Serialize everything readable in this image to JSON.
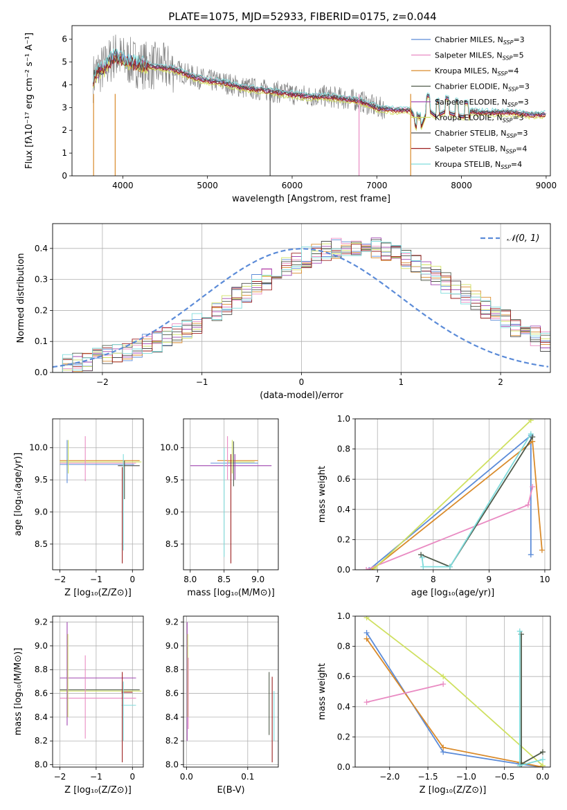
{
  "figure": {
    "title": "PLATE=1075, MJD=52933, FIBERID=0175, z=0.044"
  },
  "colors": {
    "data": "#808080",
    "series": [
      "#5b8bd8",
      "#e98ac2",
      "#d98a2a",
      "#4f5a4a",
      "#a046b0",
      "#cfe060",
      "#4d4d4d",
      "#9c1f1f",
      "#7fdcdc"
    ]
  },
  "chart_data": [
    {
      "id": "spectrum",
      "type": "line",
      "xlabel": "wavelength [Angstrom, rest frame]",
      "ylabel": "Flux [fλ10⁻¹⁷ erg cm⁻² s⁻¹ A⁻¹]",
      "xlim": [
        3400,
        9050
      ],
      "ylim": [
        0,
        6.6
      ],
      "xticks": [
        4000,
        5000,
        6000,
        7000,
        8000,
        9000
      ],
      "yticks": [
        0,
        1,
        2,
        3,
        4,
        5,
        6
      ],
      "data_series": {
        "x": [
          3650,
          3700,
          3800,
          3900,
          4000,
          4100,
          4200,
          4400,
          4600,
          4800,
          5000,
          5200,
          5400,
          5600,
          5800,
          6000,
          6200,
          6400,
          6600,
          6800,
          7000,
          7200,
          7400,
          7500,
          7600,
          7700,
          7800,
          8000,
          8200,
          8400,
          8600,
          8800,
          9000
        ],
        "y": [
          4.3,
          4.6,
          4.8,
          5.3,
          5.1,
          5.0,
          4.9,
          4.8,
          4.7,
          4.4,
          4.2,
          4.1,
          3.9,
          3.8,
          3.7,
          3.6,
          3.5,
          3.5,
          3.4,
          3.3,
          3.0,
          2.9,
          2.9,
          2.2,
          3.2,
          2.9,
          3.1,
          2.9,
          2.8,
          2.8,
          2.8,
          2.7,
          2.7
        ]
      },
      "legend": [
        {
          "name": "Chabrier MILES, N",
          "sub": "SSP",
          "val": "=3"
        },
        {
          "name": "Salpeter MILES, N",
          "sub": "SSP",
          "val": "=5"
        },
        {
          "name": "Kroupa MILES, N",
          "sub": "SSP",
          "val": "=4"
        },
        {
          "name": "Chabrier ELODIE, N",
          "sub": "SSP",
          "val": "=3"
        },
        {
          "name": "Salpeter ELODIE, N",
          "sub": "SSP",
          "val": "=3"
        },
        {
          "name": "Kroupa ELODIE, N",
          "sub": "SSP",
          "val": "=3"
        },
        {
          "name": "Chabrier STELIB, N",
          "sub": "SSP",
          "val": "=3"
        },
        {
          "name": "Salpeter STELIB, N",
          "sub": "SSP",
          "val": "=4"
        },
        {
          "name": "Kroupa STELIB, N",
          "sub": "SSP",
          "val": "=4"
        }
      ]
    },
    {
      "id": "residuals",
      "type": "histogram",
      "xlabel": "(data-model)/error",
      "ylabel": "Normed distribution",
      "xlim": [
        -2.5,
        2.5
      ],
      "ylim": [
        0,
        0.48
      ],
      "xticks": [
        -2,
        -1,
        0,
        1,
        2
      ],
      "yticks": [
        0.0,
        0.1,
        0.2,
        0.3,
        0.4
      ],
      "gaussian_label": "𝒩(0, 1)",
      "bin_width": 0.1,
      "bin_start": -2.5,
      "base_values": [
        0.02,
        0.025,
        0.03,
        0.04,
        0.045,
        0.055,
        0.065,
        0.07,
        0.08,
        0.09,
        0.1,
        0.115,
        0.13,
        0.145,
        0.16,
        0.18,
        0.2,
        0.22,
        0.24,
        0.26,
        0.285,
        0.3,
        0.32,
        0.34,
        0.355,
        0.37,
        0.38,
        0.39,
        0.4,
        0.405,
        0.41,
        0.405,
        0.4,
        0.39,
        0.38,
        0.365,
        0.35,
        0.33,
        0.31,
        0.29,
        0.27,
        0.25,
        0.23,
        0.21,
        0.19,
        0.17,
        0.15,
        0.13,
        0.115,
        0.1,
        0.09,
        0.08,
        0.07,
        0.06,
        0.05,
        0.045,
        0.04,
        0.035,
        0.03,
        0.028
      ]
    },
    {
      "id": "age-vs-Z",
      "type": "scatter-errorbar",
      "xlabel": "Z [log₁₀(Z/Z⊙)]",
      "ylabel": "age  [log₁₀(age/yr)]",
      "xlim": [
        -2.2,
        0.3
      ],
      "ylim": [
        8.1,
        10.45
      ],
      "xticks": [
        -2,
        -1,
        0
      ],
      "yticks": [
        8.5,
        9.0,
        9.5,
        10.0
      ],
      "hbars": [
        {
          "y": 9.8,
          "x0": -2.0,
          "x1": 0.2,
          "c": 2
        },
        {
          "y": 9.78,
          "x0": -2.0,
          "x1": 0.25,
          "c": 5
        },
        {
          "y": 9.76,
          "x0": -2.0,
          "x1": 0.1,
          "c": 1
        },
        {
          "y": 9.74,
          "x0": -2.0,
          "x1": 0.05,
          "c": 0
        },
        {
          "y": 9.72,
          "x0": -0.4,
          "x1": 0.2,
          "c": 6
        }
      ],
      "vbars": [
        {
          "x": -1.8,
          "y0": 9.45,
          "y1": 10.12,
          "c": 0
        },
        {
          "x": -1.77,
          "y0": 9.6,
          "y1": 10.12,
          "c": 5
        },
        {
          "x": -1.3,
          "y0": 9.48,
          "y1": 10.18,
          "c": 1
        },
        {
          "x": -0.28,
          "y0": 8.2,
          "y1": 9.7,
          "c": 7
        },
        {
          "x": -0.25,
          "y0": 8.4,
          "y1": 9.9,
          "c": 8
        },
        {
          "x": -0.22,
          "y0": 9.2,
          "y1": 9.8,
          "c": 3
        }
      ]
    },
    {
      "id": "age-vs-mass",
      "type": "scatter-errorbar",
      "xlabel": "mass [log₁₀(M/M⊙)]",
      "ylabel": "",
      "xlim": [
        7.9,
        9.3
      ],
      "ylim": [
        8.1,
        10.45
      ],
      "xticks": [
        8.0,
        8.5,
        9.0
      ],
      "yticks": [
        8.5,
        9.0,
        9.5,
        10.0
      ],
      "hbars": [
        {
          "y": 9.72,
          "x0": 8.0,
          "x1": 9.2,
          "c": 4
        },
        {
          "y": 9.76,
          "x0": 8.3,
          "x1": 9.0,
          "c": 0
        },
        {
          "y": 9.8,
          "x0": 8.4,
          "x1": 9.0,
          "c": 2
        },
        {
          "y": 9.78,
          "x0": 8.55,
          "x1": 8.95,
          "c": 5
        }
      ],
      "vbars": [
        {
          "x": 8.5,
          "y0": 8.3,
          "y1": 10.0,
          "c": 8
        },
        {
          "x": 8.55,
          "y0": 9.5,
          "y1": 10.18,
          "c": 1
        },
        {
          "x": 8.6,
          "y0": 8.2,
          "y1": 9.9,
          "c": 7
        },
        {
          "x": 8.62,
          "y0": 9.6,
          "y1": 10.12,
          "c": 5
        },
        {
          "x": 8.64,
          "y0": 9.4,
          "y1": 10.1,
          "c": 3
        },
        {
          "x": 8.66,
          "y0": 9.5,
          "y1": 9.9,
          "c": 4
        }
      ]
    },
    {
      "id": "weight-vs-age",
      "type": "line",
      "xlabel": "age  [log₁₀(age/yr)]",
      "ylabel": "mass weight",
      "xlim": [
        6.6,
        10.1
      ],
      "ylim": [
        0,
        1.0
      ],
      "xticks": [
        7,
        8,
        9,
        10
      ],
      "yticks": [
        0.0,
        0.2,
        0.4,
        0.6,
        0.8,
        1.0
      ],
      "series": [
        {
          "c": 0,
          "x": [
            6.85,
            9.75,
            9.75
          ],
          "y": [
            0.0,
            0.89,
            0.1
          ]
        },
        {
          "c": 2,
          "x": [
            6.9,
            9.78,
            9.95
          ],
          "y": [
            0.0,
            0.85,
            0.13
          ]
        },
        {
          "c": 1,
          "x": [
            6.8,
            9.7,
            9.78
          ],
          "y": [
            0.0,
            0.43,
            0.55
          ]
        },
        {
          "c": 5,
          "x": [
            6.95,
            9.75
          ],
          "y": [
            0.01,
            0.99
          ]
        },
        {
          "c": 3,
          "x": [
            7.78,
            8.3,
            9.78
          ],
          "y": [
            0.1,
            0.02,
            0.88
          ]
        },
        {
          "c": 8,
          "x": [
            7.8,
            7.82,
            8.3,
            9.75
          ],
          "y": [
            0.08,
            0.02,
            0.02,
            0.9
          ]
        }
      ]
    },
    {
      "id": "mass-vs-Z",
      "type": "scatter-errorbar",
      "xlabel": "Z [log₁₀(Z/Z⊙)]",
      "ylabel": "mass [log₁₀(M/M⊙)]",
      "xlim": [
        -2.2,
        0.3
      ],
      "ylim": [
        7.98,
        9.25
      ],
      "xticks": [
        -2,
        -1,
        0
      ],
      "yticks": [
        8.0,
        8.2,
        8.4,
        8.6,
        8.8,
        9.0,
        9.2
      ],
      "hbars": [
        {
          "y": 8.73,
          "x0": -2.0,
          "x1": 0.1,
          "c": 4
        },
        {
          "y": 8.63,
          "x0": -2.0,
          "x1": 0.2,
          "c": 3
        },
        {
          "y": 8.62,
          "x0": -2.0,
          "x1": 0.25,
          "c": 5
        },
        {
          "y": 8.56,
          "x0": -2.0,
          "x1": 0.1,
          "c": 1
        },
        {
          "y": 8.61,
          "x0": -0.3,
          "x1": 0.0,
          "c": 7
        },
        {
          "y": 8.5,
          "x0": -0.3,
          "x1": 0.1,
          "c": 8
        }
      ],
      "vbars": [
        {
          "x": -1.8,
          "y0": 8.33,
          "y1": 9.2,
          "c": 4
        },
        {
          "x": -1.78,
          "y0": 8.4,
          "y1": 9.1,
          "c": 5
        },
        {
          "x": -1.3,
          "y0": 8.22,
          "y1": 8.92,
          "c": 1
        },
        {
          "x": -0.28,
          "y0": 8.02,
          "y1": 8.78,
          "c": 7
        },
        {
          "x": -0.25,
          "y0": 8.2,
          "y1": 8.7,
          "c": 8
        }
      ]
    },
    {
      "id": "mass-vs-EBV",
      "type": "scatter-errorbar",
      "xlabel": "E(B-V)",
      "ylabel": "",
      "xlim": [
        -0.005,
        0.15
      ],
      "ylim": [
        7.98,
        9.25
      ],
      "xticks": [
        0.0,
        0.1
      ],
      "yticks": [
        8.0,
        8.2,
        8.4,
        8.6,
        8.8,
        9.0,
        9.2
      ],
      "hbars": [],
      "vbars": [
        {
          "x": 0.001,
          "y0": 8.2,
          "y1": 9.2,
          "c": 4
        },
        {
          "x": 0.002,
          "y0": 8.4,
          "y1": 9.1,
          "c": 5
        },
        {
          "x": 0.003,
          "y0": 8.3,
          "y1": 8.9,
          "c": 1
        },
        {
          "x": 0.135,
          "y0": 8.25,
          "y1": 8.78,
          "c": 3
        },
        {
          "x": 0.14,
          "y0": 8.02,
          "y1": 8.74,
          "c": 7
        },
        {
          "x": 0.143,
          "y0": 8.2,
          "y1": 8.62,
          "c": 8
        }
      ]
    },
    {
      "id": "weight-vs-Z",
      "type": "line",
      "xlabel": "Z [log₁₀(Z/Z⊙)]",
      "ylabel": "mass weight",
      "xlim": [
        -2.45,
        0.1
      ],
      "ylim": [
        0,
        1.0
      ],
      "xticks": [
        -2.0,
        -1.5,
        -1.0,
        -0.5,
        0.0
      ],
      "yticks": [
        0.0,
        0.2,
        0.4,
        0.6,
        0.8,
        1.0
      ],
      "series": [
        {
          "c": 0,
          "x": [
            -2.3,
            -1.3,
            -0.3,
            0.0
          ],
          "y": [
            0.89,
            0.1,
            0.02,
            0.0
          ]
        },
        {
          "c": 2,
          "x": [
            -2.3,
            -1.3,
            -0.3,
            0.0
          ],
          "y": [
            0.85,
            0.13,
            0.03,
            0.0
          ]
        },
        {
          "c": 1,
          "x": [
            -2.3,
            -1.3
          ],
          "y": [
            0.43,
            0.55
          ]
        },
        {
          "c": 5,
          "x": [
            -2.3,
            -1.3,
            0.0
          ],
          "y": [
            0.99,
            0.6,
            0.01
          ]
        },
        {
          "c": 3,
          "x": [
            -0.28,
            -0.28,
            0.0
          ],
          "y": [
            0.88,
            0.02,
            0.1
          ]
        },
        {
          "c": 8,
          "x": [
            -0.3,
            -0.3,
            0.0
          ],
          "y": [
            0.9,
            0.01,
            0.05
          ]
        }
      ]
    }
  ]
}
